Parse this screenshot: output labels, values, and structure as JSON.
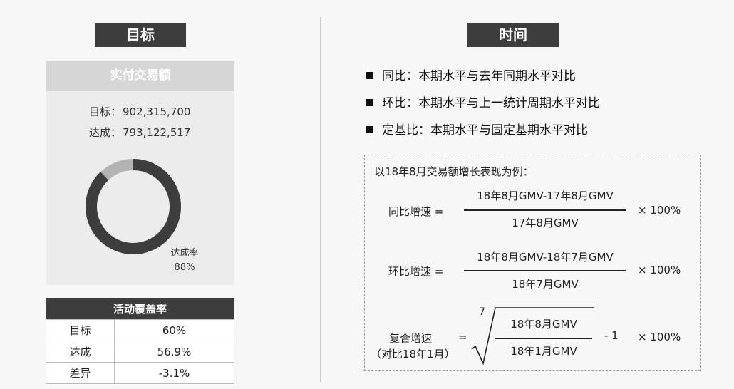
{
  "left": {
    "title": "目标",
    "panel": {
      "title": "实付交易额",
      "target_label": "目标：",
      "target_value": "902,315,700",
      "achieved_label": "达成：",
      "achieved_value": "793,122,517",
      "rate_label": "达成率",
      "rate_value": "88%",
      "rate_fraction": 0.88
    },
    "coverage": {
      "title": "活动覆盖率",
      "rows": [
        {
          "k": "目标",
          "v": "60%"
        },
        {
          "k": "达成",
          "v": "56.9%"
        },
        {
          "k": "差异",
          "v": "-3.1%"
        }
      ]
    }
  },
  "right": {
    "title": "时间",
    "bullets": [
      "同比：本期水平与去年同期水平对比",
      "环比：本期水平与上一统计周期水平对比",
      "定基比：本期水平与固定基期水平对比"
    ],
    "example": {
      "intro": "以18年8月交易额增长表现为例：",
      "yoy": {
        "label": "同比增速 =",
        "num": "18年8月GMV-17年8月GMV",
        "den": "17年8月GMV",
        "mult": "× 100%"
      },
      "mom": {
        "label": "环比增速 =",
        "num": "18年8月GMV-18年7月GMV",
        "den": "18年7月GMV",
        "mult": "× 100%"
      },
      "cagr": {
        "label1": "复合增速",
        "label2": "（对比18年1月）",
        "eq": "=",
        "root": "7",
        "num": "18年8月GMV",
        "den": "18年1月GMV",
        "minus": "- 1",
        "mult": "× 100%"
      }
    }
  },
  "colors": {
    "dark": "#3d3d3d",
    "ring_main": "#3d3d3d",
    "ring_rest": "#b3b3b3"
  }
}
